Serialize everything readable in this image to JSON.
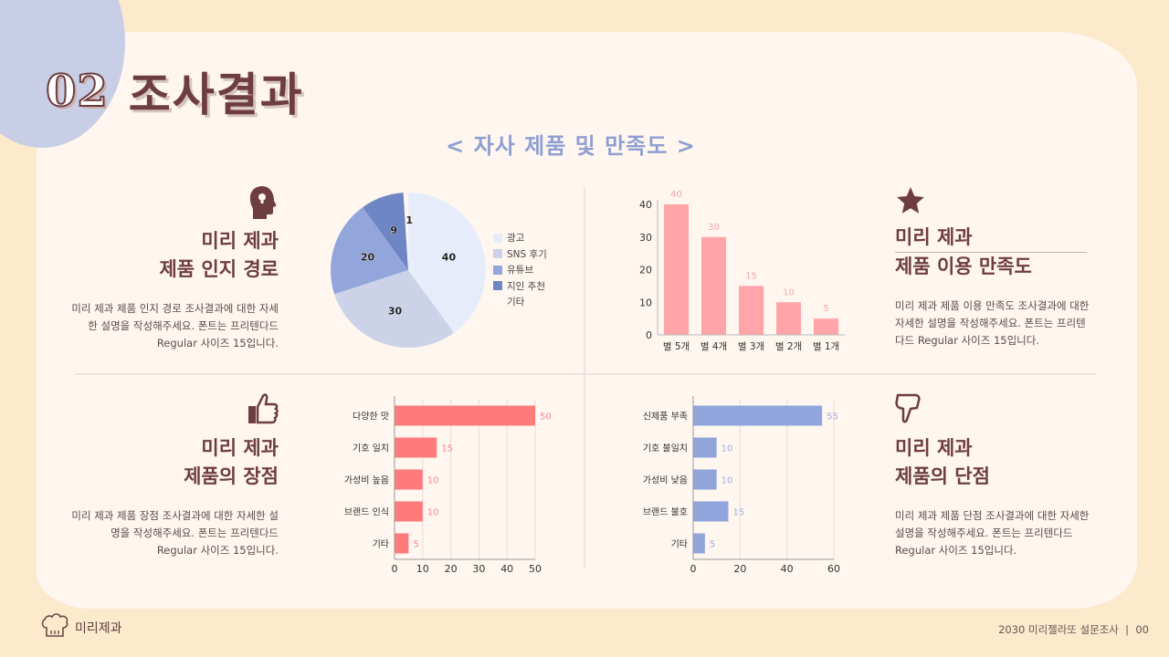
{
  "header": {
    "section_number": "02",
    "title": "조사결과",
    "subtitle": "< 자사 제품 및 만족도 >"
  },
  "blocks": {
    "awareness": {
      "icon": "head-lightbulb-icon",
      "title_line1": "미리 제과",
      "title_line2": "제품 인지 경로",
      "description": "미리 제과 제품 인지 경로 조사결과에 대한 자세한 설명을 작성해주세요. 폰트는 프리텐다드 Regular 사이즈 15입니다."
    },
    "satisfaction": {
      "icon": "star-icon",
      "title_line1": "미리 제과",
      "title_line2": "제품 이용 만족도",
      "description": "미리 제과 제품 이용 만족도 조사결과에 대한 자세한 설명을 작성해주세요. 폰트는 프리텐다드 Regular 사이즈 15입니다."
    },
    "strengths": {
      "icon": "thumbs-up-icon",
      "title_line1": "미리 제과",
      "title_line2": "제품의 장점",
      "description": "미리 제과 제품 장점 조사결과에 대한 자세한 설명을 작성해주세요. 폰트는 프리텐다드 Regular 사이즈 15입니다."
    },
    "weaknesses": {
      "icon": "thumbs-down-icon",
      "title_line1": "미리 제과",
      "title_line2": "제품의 단점",
      "description": "미리 제과 제품 단점 조사결과에 대한 자세한 설명을 작성해주세요. 폰트는 프리텐다드 Regular 사이즈 15입니다."
    }
  },
  "chart_data": [
    {
      "type": "pie",
      "title": "제품 인지 경로",
      "categories": [
        "광고",
        "SNS 후기",
        "유튜브",
        "지인 추천",
        "기타"
      ],
      "values": [
        40,
        30,
        20,
        9,
        1
      ],
      "colors": [
        "#e7ecfb",
        "#ccd2e8",
        "#93a6dc",
        "#6f86c4",
        "#fdf8f2"
      ],
      "legend_position": "right"
    },
    {
      "type": "bar",
      "title": "제품 이용 만족도",
      "categories": [
        "별 5개",
        "별 4개",
        "별 3개",
        "별 2개",
        "별 1개"
      ],
      "values": [
        40,
        30,
        15,
        10,
        5
      ],
      "ylim": [
        0,
        40
      ],
      "yticks": [
        0,
        10,
        20,
        30,
        40
      ],
      "color": "#ffa5aa",
      "data_labels": true,
      "grid": false
    },
    {
      "type": "bar",
      "orientation": "horizontal",
      "title": "제품의 장점",
      "categories": [
        "다양한 맛",
        "기호 일치",
        "가성비 높음",
        "브랜드 인식",
        "기타"
      ],
      "values": [
        50,
        15,
        10,
        10,
        5
      ],
      "xlim": [
        0,
        50
      ],
      "xticks": [
        0,
        10,
        20,
        30,
        40,
        50
      ],
      "color": "#ff7b7b",
      "data_labels": true,
      "grid": true
    },
    {
      "type": "bar",
      "orientation": "horizontal",
      "title": "제품의 단점",
      "categories": [
        "신제품 부족",
        "기호 불일치",
        "가성비 낮음",
        "브랜드 불호",
        "기타"
      ],
      "values": [
        55,
        10,
        10,
        15,
        5
      ],
      "xlim": [
        0,
        60
      ],
      "xticks": [
        0,
        20,
        40,
        60
      ],
      "color": "#8fa5dc",
      "data_labels": true,
      "grid": true
    }
  ],
  "footer": {
    "logo_icon": "chef-hat-icon",
    "brand": "미리제과",
    "right_text": "2030 미리젤라또 설문조사  |  00"
  },
  "colors": {
    "background": "#fde9cc",
    "panel": "#fef6ef",
    "accent_circle": "#c8cee6",
    "title": "#6e3d3f",
    "subtitle": "#8f9fd2"
  }
}
